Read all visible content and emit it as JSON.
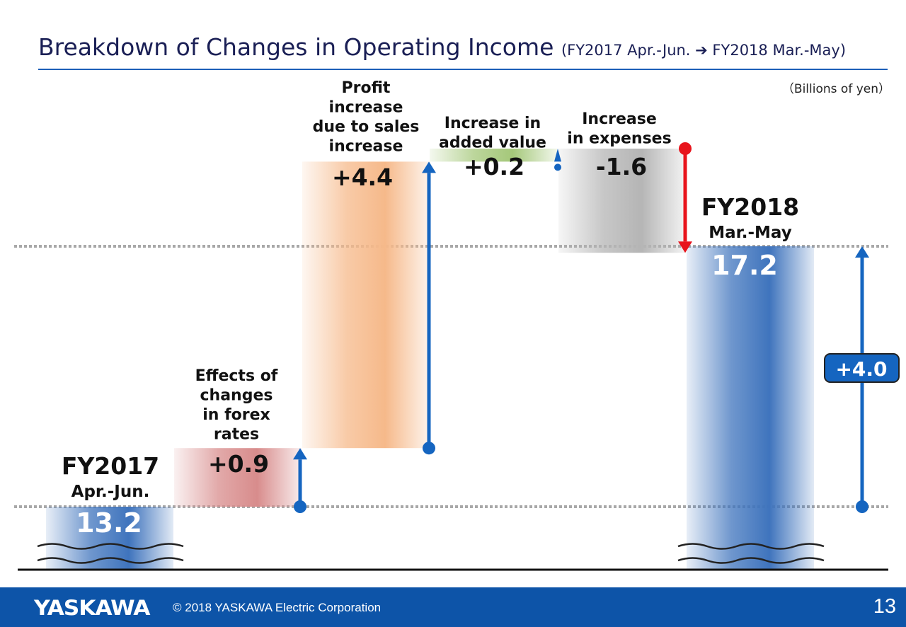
{
  "header": {
    "title": "Breakdown of Changes in Operating Income",
    "period": "(FY2017 Apr.-Jun. ➔ FY2018 Mar.-May)",
    "unit": "（Billions of yen）"
  },
  "chart_data": {
    "type": "waterfall",
    "unit": "Billions of yen",
    "steps": [
      {
        "kind": "total",
        "heading": "FY2017",
        "subheading": "Apr.-Jun.",
        "value": 13.2,
        "value_label": "13.2",
        "color": "#3f74bd"
      },
      {
        "kind": "delta",
        "label_lines": [
          "Effects of",
          "changes",
          "in forex",
          "rates"
        ],
        "value": 0.9,
        "value_label": "+0.9",
        "color": "#d88c8c"
      },
      {
        "kind": "delta",
        "label_lines": [
          "Profit",
          "increase",
          "due to sales",
          "increase"
        ],
        "value": 4.4,
        "value_label": "+4.4",
        "color": "#f6b98a"
      },
      {
        "kind": "delta",
        "label_lines": [
          "Increase in",
          "added value"
        ],
        "value": 0.2,
        "value_label": "+0.2",
        "color": "#a5c87a"
      },
      {
        "kind": "delta",
        "label_lines": [
          "Increase",
          "in expenses"
        ],
        "value": -1.6,
        "value_label": "-1.6",
        "color": "#b5b5b5"
      },
      {
        "kind": "total",
        "heading": "FY2018",
        "subheading": "Mar.-May",
        "value": 17.2,
        "value_label": "17.2",
        "color": "#3f74bd"
      }
    ],
    "net_change": {
      "value": 4.0,
      "label": "+4.0"
    },
    "colors": {
      "arrow_up": "#1565c0",
      "arrow_down": "#e8141c",
      "badge": "#1565c0"
    }
  },
  "footer": {
    "logo": "YASKAWA",
    "copyright": "© 2018 YASKAWA Electric Corporation",
    "page": "13"
  }
}
